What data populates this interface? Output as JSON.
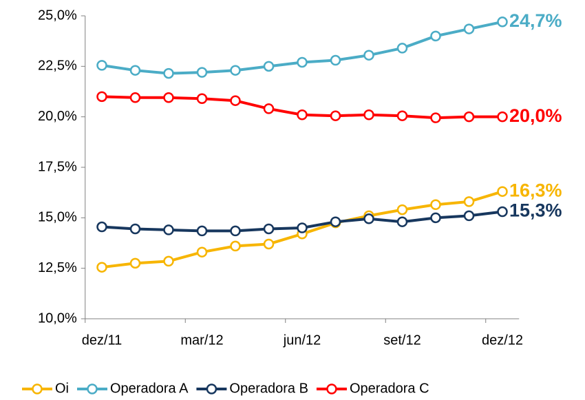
{
  "chart_data": {
    "type": "line",
    "categories": [
      "dez/11",
      null,
      null,
      "mar/12",
      null,
      null,
      "jun/12",
      null,
      null,
      "set/12",
      null,
      null,
      "dez/12"
    ],
    "series": [
      {
        "name": "Oi",
        "color": "#f7b500",
        "values": [
          12.55,
          12.75,
          12.85,
          13.3,
          13.6,
          13.7,
          14.2,
          14.75,
          15.1,
          15.4,
          15.65,
          15.8,
          16.3
        ],
        "value_labels": [
          null,
          null,
          null,
          null,
          null,
          null,
          null,
          null,
          null,
          null,
          null,
          null,
          "16,3%"
        ]
      },
      {
        "name": "Operadora A",
        "color": "#4bacc6",
        "values": [
          22.55,
          22.3,
          22.15,
          22.2,
          22.3,
          22.5,
          22.7,
          22.8,
          23.05,
          23.4,
          24.0,
          24.35,
          24.7
        ],
        "value_labels": [
          null,
          null,
          null,
          null,
          null,
          null,
          null,
          null,
          null,
          null,
          null,
          null,
          "24,7%"
        ]
      },
      {
        "name": "Operadora B",
        "color": "#17375e",
        "values": [
          14.55,
          14.45,
          14.4,
          14.35,
          14.35,
          14.45,
          14.5,
          14.8,
          14.95,
          14.8,
          15.0,
          15.1,
          15.3
        ],
        "value_labels": [
          null,
          null,
          null,
          null,
          null,
          null,
          null,
          null,
          null,
          null,
          null,
          null,
          "15,3%"
        ]
      },
      {
        "name": "Operadora C",
        "color": "#ff0000",
        "values": [
          21.0,
          20.95,
          20.95,
          20.9,
          20.8,
          20.4,
          20.1,
          20.05,
          20.1,
          20.05,
          19.95,
          20.0,
          20.0
        ],
        "value_labels": [
          null,
          null,
          null,
          null,
          null,
          null,
          null,
          null,
          null,
          null,
          null,
          null,
          "20,0%"
        ]
      }
    ],
    "ylim": [
      10,
      25
    ],
    "yticks": [
      {
        "value": 10,
        "label": "10,0%"
      },
      {
        "value": 12.5,
        "label": "12,5%"
      },
      {
        "value": 15,
        "label": "15,0%"
      },
      {
        "value": 17.5,
        "label": "17,5%"
      },
      {
        "value": 20,
        "label": "20,0%"
      },
      {
        "value": 22.5,
        "label": "22,5%"
      },
      {
        "value": 25,
        "label": "25,0%"
      }
    ],
    "grid": false,
    "legend": "bottom"
  }
}
